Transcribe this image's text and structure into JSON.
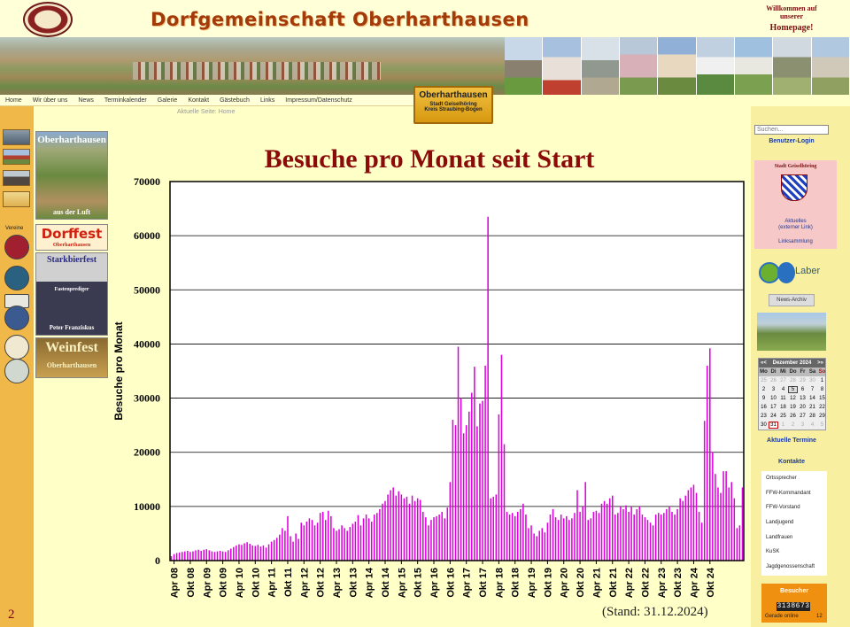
{
  "header": {
    "title": "Dorfgemeinschaft Oberharthausen",
    "welcome": "Willkommen auf unserer",
    "homepage": "Homepage!"
  },
  "nav": {
    "items": [
      "Home",
      "Wir über uns",
      "News",
      "Terminkalender",
      "Galerie",
      "Kontakt",
      "Gästebuch",
      "Links",
      "Impressum/Datenschutz"
    ],
    "breadcrumb": "Aktuelle Seite: Home"
  },
  "badge": {
    "title": "Oberharthausen",
    "sub1": "Stadt Geiselhöring",
    "sub2": "Kreis Straubing-Bogen"
  },
  "left": {
    "vereine": "Vereine",
    "promos": [
      "Oberharthausen",
      "aus der Luft",
      "Dorffest",
      "Oberharthausen",
      "Starkbierfest",
      "Fastenprediger",
      "Peter Franziskus",
      "Weinfest",
      "Oberharthausen"
    ]
  },
  "right": {
    "search_placeholder": "Suchen...",
    "login": "Benutzer-Login",
    "stadt_title": "Stadt Geiselhöring",
    "stadt_aktuelles_1": "Aktuelles",
    "stadt_aktuelles_2": "(externer Link)",
    "stadt_links": "Linksammlung",
    "ile": "Laber",
    "news_archive": "News-Archiv",
    "calendar": {
      "prev": "«<",
      "month": "Dezember 2024",
      "next": ">»",
      "dow": [
        "Mo",
        "Di",
        "Mi",
        "Do",
        "Fr",
        "Sa",
        "So"
      ],
      "weeks": [
        [
          "25",
          "26",
          "27",
          "28",
          "29",
          "30",
          "1"
        ],
        [
          "2",
          "3",
          "4",
          "5",
          "6",
          "7",
          "8"
        ],
        [
          "9",
          "10",
          "11",
          "12",
          "13",
          "14",
          "15"
        ],
        [
          "16",
          "17",
          "18",
          "19",
          "20",
          "21",
          "22"
        ],
        [
          "23",
          "24",
          "25",
          "26",
          "27",
          "28",
          "29"
        ],
        [
          "30",
          "31",
          "1",
          "2",
          "3",
          "4",
          "5"
        ]
      ]
    },
    "termine": "Aktuelle Termine",
    "kontakte_title": "Kontakte",
    "kontakte": [
      "Ortssprecher",
      "FFW-Kommandant",
      "FFW-Vorstand",
      "Landjugend",
      "Landfrauen",
      "KuSK",
      "Jagdgenossenschaft"
    ],
    "besucher_title": "Besucher",
    "besucher_count": "3138673",
    "online_label": "Gerade online",
    "online_count": "12"
  },
  "slide": {
    "page_number": "2",
    "stand": "(Stand: 31.12.2024)"
  },
  "chart_data": {
    "type": "bar",
    "title": "Besuche pro Monat seit Start",
    "ylabel": "Besuche pro Monat",
    "xlabel": "",
    "ylim": [
      0,
      70000
    ],
    "yticks": [
      0,
      10000,
      20000,
      30000,
      40000,
      50000,
      60000,
      70000
    ],
    "grid": true,
    "bar_color": "#dd00dd",
    "x_tick_labels": [
      "Apr 08",
      "Okt 08",
      "Apr 09",
      "Okt 09",
      "Apr 10",
      "Okt 10",
      "Apr 11",
      "Okt 11",
      "Apr 12",
      "Okt 12",
      "Apr 13",
      "Okt 13",
      "Apr 14",
      "Okt 14",
      "Apr 15",
      "Okt 15",
      "Apr 16",
      "Okt 16",
      "Apr 17",
      "Okt 17",
      "Apr 18",
      "Okt 18",
      "Apr 19",
      "Okt 19",
      "Apr 20",
      "Okt 20",
      "Apr 21",
      "Okt 21",
      "Apr 22",
      "Okt 22",
      "Apr 23",
      "Okt 23",
      "Apr 24",
      "Okt 24"
    ],
    "start": "2008-03",
    "values": [
      800,
      1200,
      1400,
      1500,
      1600,
      1700,
      1800,
      1600,
      1700,
      1900,
      2000,
      1800,
      2000,
      2100,
      1900,
      1700,
      1600,
      1700,
      1800,
      1700,
      1600,
      1900,
      2200,
      2500,
      2800,
      3000,
      2900,
      3200,
      3400,
      3100,
      2800,
      2700,
      2900,
      2600,
      2800,
      2400,
      3000,
      3500,
      3800,
      4200,
      4800,
      6000,
      5500,
      8200,
      4500,
      3500,
      5000,
      4000,
      7000,
      6500,
      7200,
      7800,
      7500,
      6500,
      7000,
      8800,
      9000,
      7500,
      9200,
      8200,
      6000,
      5500,
      5800,
      6500,
      6000,
      5500,
      6200,
      6800,
      7200,
      8400,
      6500,
      7800,
      8500,
      7800,
      7200,
      8500,
      8800,
      9500,
      10500,
      11000,
      12200,
      13000,
      13500,
      12000,
      12800,
      12200,
      11500,
      11800,
      10500,
      12000,
      11000,
      11500,
      11200,
      9000,
      8000,
      6500,
      7500,
      8000,
      8200,
      8500,
      9000,
      7800,
      9800,
      14500,
      26000,
      25000,
      39500,
      30000,
      23500,
      25000,
      27500,
      31000,
      35800,
      24800,
      29000,
      29500,
      36000,
      63500,
      11500,
      11800,
      12200,
      27000,
      38000,
      21500,
      9000,
      8500,
      8800,
      8200,
      9000,
      9500,
      10500,
      8500,
      6000,
      6500,
      5000,
      4500,
      5500,
      6000,
      5200,
      7000,
      8500,
      9500,
      8000,
      7500,
      8500,
      7800,
      8200,
      7500,
      7800,
      8800,
      13000,
      9000,
      10000,
      14500,
      7500,
      7800,
      9000,
      9200,
      8800,
      10500,
      11000,
      10500,
      11500,
      12000,
      8500,
      8800,
      10000,
      9500,
      10200,
      9000,
      10000,
      8500,
      9500,
      10000,
      8500,
      8000,
      7500,
      7000,
      6500,
      8500,
      8800,
      8500,
      8800,
      9500,
      10000,
      9000,
      8500,
      9500,
      11500,
      11000,
      12000,
      13000,
      13500,
      14000,
      12500,
      9000,
      7000,
      25800,
      36000,
      39200,
      20000,
      16000,
      13500,
      12500,
      16500,
      16500,
      13500,
      14500,
      11500,
      6000,
      6500,
      13500
    ]
  }
}
